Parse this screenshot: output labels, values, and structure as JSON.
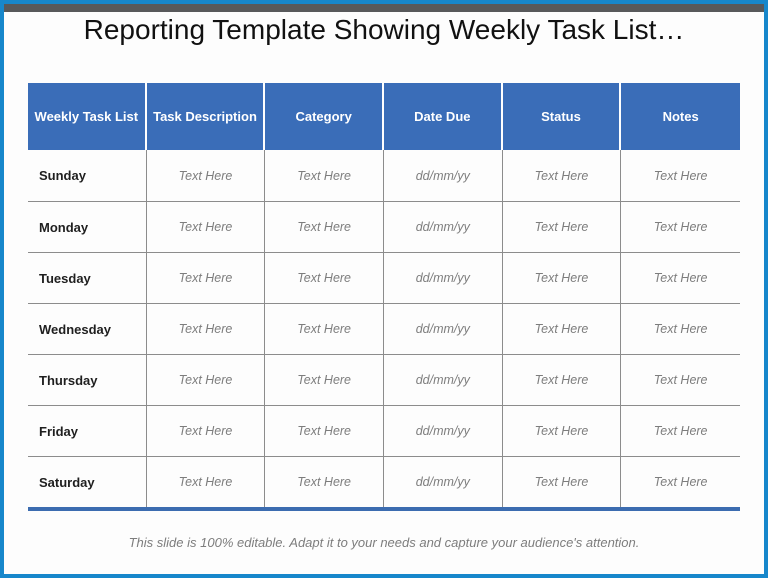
{
  "slide": {
    "title": "Reporting Template Showing Weekly Task List…",
    "footer_note": "This slide is 100% editable. Adapt it to your needs and capture your audience's attention."
  },
  "table": {
    "headers": [
      "Weekly Task List",
      "Task Description",
      "Category",
      "Date Due",
      "Status",
      "Notes"
    ],
    "rows": [
      {
        "day": "Sunday",
        "cells": [
          "Text Here",
          "Text Here",
          "dd/mm/yy",
          "Text Here",
          "Text Here"
        ]
      },
      {
        "day": "Monday",
        "cells": [
          "Text Here",
          "Text Here",
          "dd/mm/yy",
          "Text Here",
          "Text Here"
        ]
      },
      {
        "day": "Tuesday",
        "cells": [
          "Text Here",
          "Text Here",
          "dd/mm/yy",
          "Text Here",
          "Text Here"
        ]
      },
      {
        "day": "Wednesday",
        "cells": [
          "Text Here",
          "Text Here",
          "dd/mm/yy",
          "Text Here",
          "Text Here"
        ]
      },
      {
        "day": "Thursday",
        "cells": [
          "Text Here",
          "Text Here",
          "dd/mm/yy",
          "Text Here",
          "Text Here"
        ]
      },
      {
        "day": "Friday",
        "cells": [
          "Text Here",
          "Text Here",
          "dd/mm/yy",
          "Text Here",
          "Text Here"
        ]
      },
      {
        "day": "Saturday",
        "cells": [
          "Text Here",
          "Text Here",
          "dd/mm/yy",
          "Text Here",
          "Text Here"
        ]
      }
    ]
  },
  "colors": {
    "frame_blue": "#1787cb",
    "header_blue": "#3a6db8",
    "table_bottom_blue": "#3c6cb0",
    "top_bar_gray": "#58595b",
    "grid_gray": "#8c8c8c",
    "placeholder_gray": "#7d7d7d",
    "day_text": "#1f1f1f",
    "title_text": "#111111"
  }
}
